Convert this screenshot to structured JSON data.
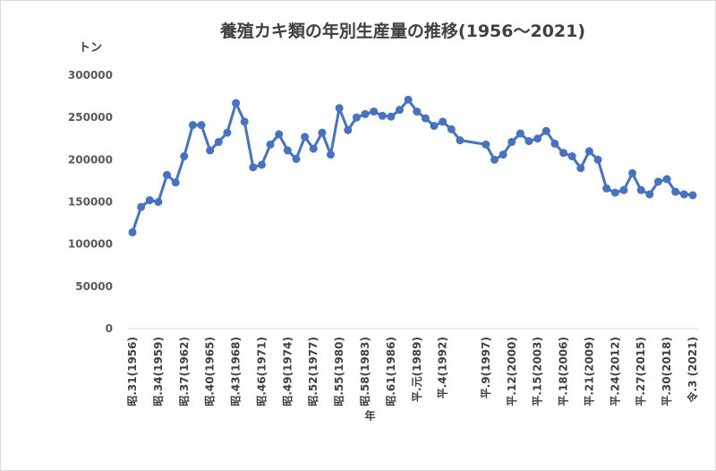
{
  "chart_data": {
    "type": "line",
    "title": "養殖カキ類の年別生産量の推移(1956～2021)",
    "ylabel": "トン",
    "xlabel": "年",
    "ylim": [
      0,
      300000
    ],
    "y_ticks": [
      "0",
      "50000",
      "100000",
      "150000",
      "200000",
      "250000",
      "300000"
    ],
    "x_tick_labels": [
      "昭.31(1956)",
      "昭.34(1959)",
      "昭.37(1962)",
      "昭.40(1965)",
      "昭.43(1968)",
      "昭.46(1971)",
      "昭.49(1974)",
      "昭.52(1977)",
      "昭.55(1980)",
      "昭.58(1983)",
      "昭.61(1986)",
      "平.元(1989)",
      "平.4(1992)",
      "平.9(1997)",
      "平.12(2000)",
      "平.15(2003)",
      "平.18(2006)",
      "平.21(2009)",
      "平.24(2012)",
      "平.27(2015)",
      "平.30(2018)",
      "令.3 (2021)"
    ],
    "x_tick_years": [
      1956,
      1959,
      1962,
      1965,
      1968,
      1971,
      1974,
      1977,
      1980,
      1983,
      1986,
      1989,
      1992,
      1997,
      2000,
      2003,
      2006,
      2009,
      2012,
      2015,
      2018,
      2021
    ],
    "grid": false,
    "line_color": "#4472c4",
    "series": [
      {
        "name": "",
        "points": [
          {
            "year": 1956,
            "value": 114000
          },
          {
            "year": 1957,
            "value": 144000
          },
          {
            "year": 1958,
            "value": 152000
          },
          {
            "year": 1959,
            "value": 150000
          },
          {
            "year": 1960,
            "value": 182000
          },
          {
            "year": 1961,
            "value": 173000
          },
          {
            "year": 1962,
            "value": 204000
          },
          {
            "year": 1963,
            "value": 241000
          },
          {
            "year": 1964,
            "value": 241000
          },
          {
            "year": 1965,
            "value": 211000
          },
          {
            "year": 1966,
            "value": 221000
          },
          {
            "year": 1967,
            "value": 232000
          },
          {
            "year": 1968,
            "value": 267000
          },
          {
            "year": 1969,
            "value": 245000
          },
          {
            "year": 1970,
            "value": 191000
          },
          {
            "year": 1971,
            "value": 194000
          },
          {
            "year": 1972,
            "value": 218000
          },
          {
            "year": 1973,
            "value": 230000
          },
          {
            "year": 1974,
            "value": 211000
          },
          {
            "year": 1975,
            "value": 201000
          },
          {
            "year": 1976,
            "value": 227000
          },
          {
            "year": 1977,
            "value": 213000
          },
          {
            "year": 1978,
            "value": 232000
          },
          {
            "year": 1979,
            "value": 206000
          },
          {
            "year": 1980,
            "value": 261000
          },
          {
            "year": 1981,
            "value": 235000
          },
          {
            "year": 1982,
            "value": 250000
          },
          {
            "year": 1983,
            "value": 254000
          },
          {
            "year": 1984,
            "value": 257000
          },
          {
            "year": 1985,
            "value": 252000
          },
          {
            "year": 1986,
            "value": 251000
          },
          {
            "year": 1987,
            "value": 259000
          },
          {
            "year": 1988,
            "value": 271000
          },
          {
            "year": 1989,
            "value": 257000
          },
          {
            "year": 1990,
            "value": 249000
          },
          {
            "year": 1991,
            "value": 240000
          },
          {
            "year": 1992,
            "value": 245000
          },
          {
            "year": 1993,
            "value": 236000
          },
          {
            "year": 1994,
            "value": 223000
          },
          {
            "year": 1997,
            "value": 218000
          },
          {
            "year": 1998,
            "value": 200000
          },
          {
            "year": 1999,
            "value": 206000
          },
          {
            "year": 2000,
            "value": 221000
          },
          {
            "year": 2001,
            "value": 231000
          },
          {
            "year": 2002,
            "value": 222000
          },
          {
            "year": 2003,
            "value": 225000
          },
          {
            "year": 2004,
            "value": 234000
          },
          {
            "year": 2005,
            "value": 219000
          },
          {
            "year": 2006,
            "value": 208000
          },
          {
            "year": 2007,
            "value": 204000
          },
          {
            "year": 2008,
            "value": 190000
          },
          {
            "year": 2009,
            "value": 210000
          },
          {
            "year": 2010,
            "value": 200000
          },
          {
            "year": 2011,
            "value": 166000
          },
          {
            "year": 2012,
            "value": 161000
          },
          {
            "year": 2013,
            "value": 164000
          },
          {
            "year": 2014,
            "value": 184000
          },
          {
            "year": 2015,
            "value": 164000
          },
          {
            "year": 2016,
            "value": 159000
          },
          {
            "year": 2017,
            "value": 174000
          },
          {
            "year": 2018,
            "value": 177000
          },
          {
            "year": 2019,
            "value": 162000
          },
          {
            "year": 2020,
            "value": 159000
          },
          {
            "year": 2021,
            "value": 158000
          }
        ]
      }
    ]
  }
}
